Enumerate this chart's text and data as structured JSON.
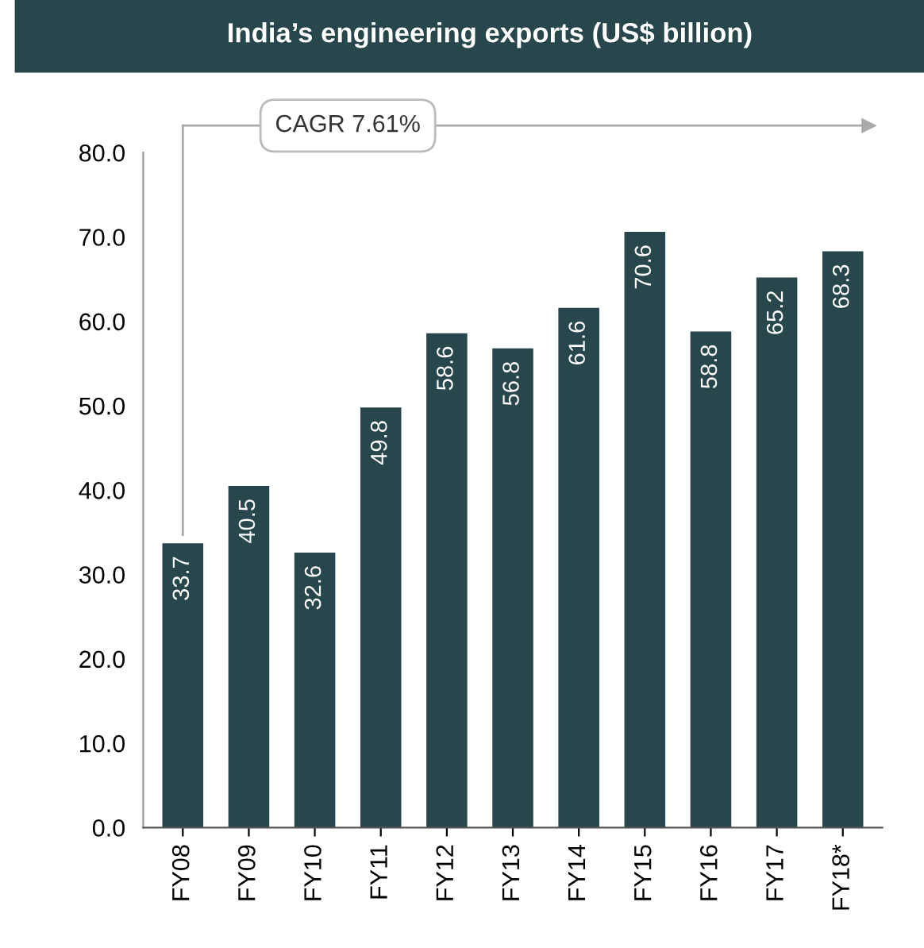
{
  "chart_data": {
    "type": "bar",
    "title": "India’s engineering exports (US$ billion)",
    "categories": [
      "FY08",
      "FY09",
      "FY10",
      "FY11",
      "FY12",
      "FY13",
      "FY14",
      "FY15",
      "FY16",
      "FY17",
      "FY18*"
    ],
    "values": [
      33.7,
      40.5,
      32.6,
      49.8,
      58.6,
      56.8,
      61.6,
      70.6,
      58.8,
      65.2,
      68.3
    ],
    "color": "#27474c",
    "ylim": [
      0,
      80
    ],
    "yticks": [
      {
        "value": 0,
        "label": "0.0"
      },
      {
        "value": 10,
        "label": "10.0"
      },
      {
        "value": 20,
        "label": "20.0"
      },
      {
        "value": 30,
        "label": "30.0"
      },
      {
        "value": 40,
        "label": "40.0"
      },
      {
        "value": 50,
        "label": "50.0"
      },
      {
        "value": 60,
        "label": "60.0"
      },
      {
        "value": 70,
        "label": "70.0"
      },
      {
        "value": 80,
        "label": "80.0"
      }
    ],
    "grid": false,
    "data_labels": true,
    "annotations": [
      "CAGR 7.61%"
    ]
  }
}
